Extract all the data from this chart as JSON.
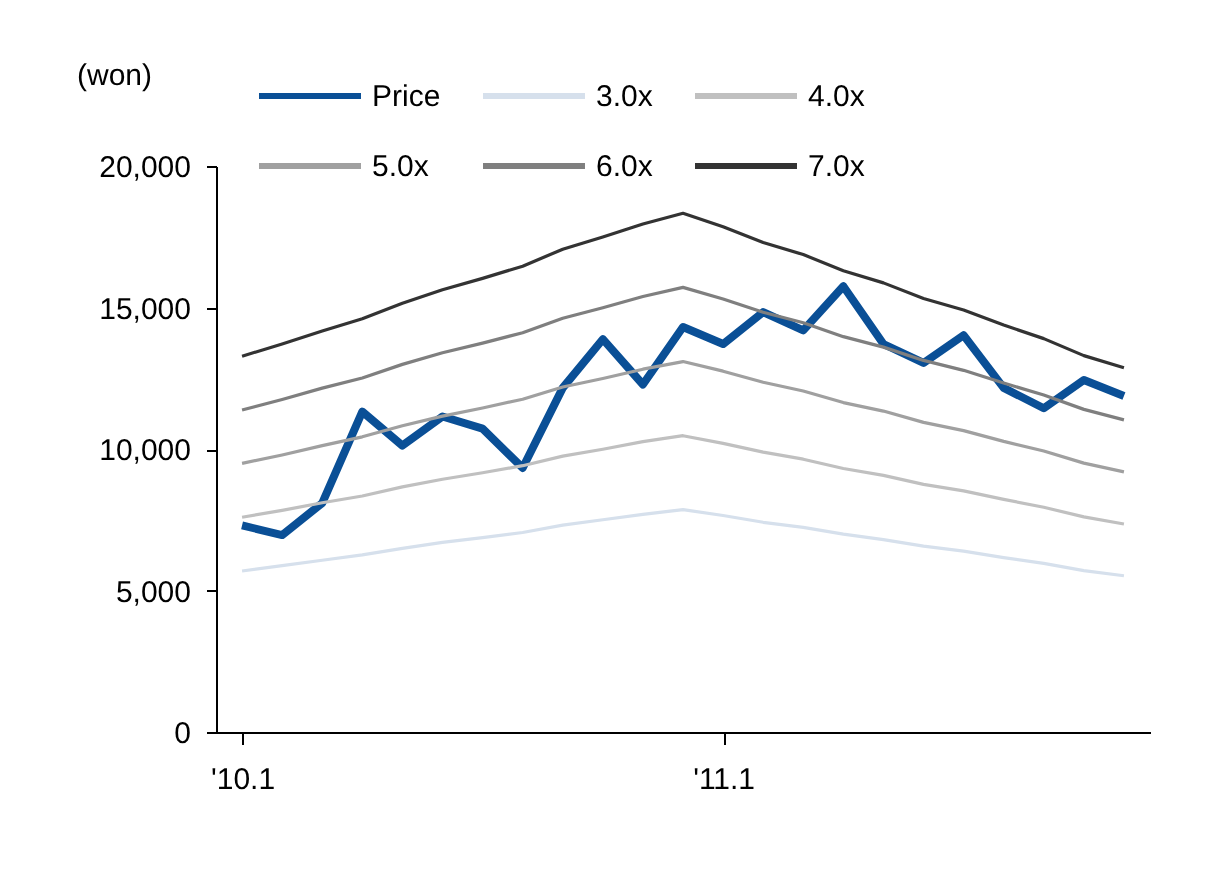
{
  "chart_data": {
    "type": "line",
    "ylabel": "(won)",
    "categories": [
      "'10.1",
      null,
      null,
      null,
      null,
      null,
      null,
      null,
      null,
      null,
      null,
      null,
      "'11.1",
      null,
      null,
      null,
      null,
      null,
      null,
      null,
      null,
      null,
      null
    ],
    "ylim": [
      0,
      20000
    ],
    "yticks": [
      0,
      {
        "value": 5000,
        "label": "5,000"
      },
      {
        "value": 10000,
        "label": "10,000"
      },
      {
        "value": 15000,
        "label": "15,000"
      },
      {
        "value": 20000,
        "label": "20,000"
      }
    ],
    "grid": false,
    "legend": "top",
    "marker": "none",
    "line_style": "solid",
    "series": [
      {
        "name": "Price",
        "color": "#0a4f96",
        "values": [
          7300,
          6960,
          8090,
          11320,
          10120,
          11150,
          10720,
          9330,
          12160,
          13880,
          12280,
          14310,
          13710,
          14840,
          14190,
          15750,
          13710,
          13040,
          14020,
          12160,
          11440,
          12440,
          11870
        ]
      },
      {
        "name": "3.0x",
        "color": "#d6e0ec",
        "values": [
          5690,
          5880,
          6070,
          6260,
          6490,
          6700,
          6870,
          7050,
          7310,
          7500,
          7690,
          7860,
          7650,
          7410,
          7230,
          6990,
          6800,
          6570,
          6390,
          6160,
          5960,
          5700,
          5520
        ]
      },
      {
        "name": "4.0x",
        "color": "#c0c0c0",
        "values": [
          7590,
          7830,
          8100,
          8340,
          8660,
          8930,
          9160,
          9410,
          9750,
          9990,
          10260,
          10470,
          10200,
          9890,
          9640,
          9310,
          9070,
          8750,
          8520,
          8220,
          7940,
          7600,
          7350
        ]
      },
      {
        "name": "5.0x",
        "color": "#a0a0a0",
        "values": [
          9490,
          9790,
          10120,
          10430,
          10820,
          11160,
          11450,
          11760,
          12190,
          12490,
          12820,
          13090,
          12750,
          12360,
          12050,
          11640,
          11340,
          10940,
          10650,
          10270,
          9930,
          9500,
          9190
        ]
      },
      {
        "name": "6.0x",
        "color": "#7f7f7f",
        "values": [
          11380,
          11750,
          12150,
          12510,
          12990,
          13400,
          13740,
          14110,
          14620,
          14990,
          15390,
          15710,
          15300,
          14830,
          14460,
          13970,
          13600,
          13130,
          12780,
          12330,
          11910,
          11400,
          11030
        ]
      },
      {
        "name": "7.0x",
        "color": "#333333",
        "values": [
          13280,
          13710,
          14170,
          14600,
          15150,
          15630,
          16030,
          16460,
          17060,
          17490,
          17950,
          18330,
          17850,
          17300,
          16870,
          16300,
          15870,
          15320,
          14910,
          14380,
          13900,
          13300,
          12870
        ]
      }
    ]
  }
}
